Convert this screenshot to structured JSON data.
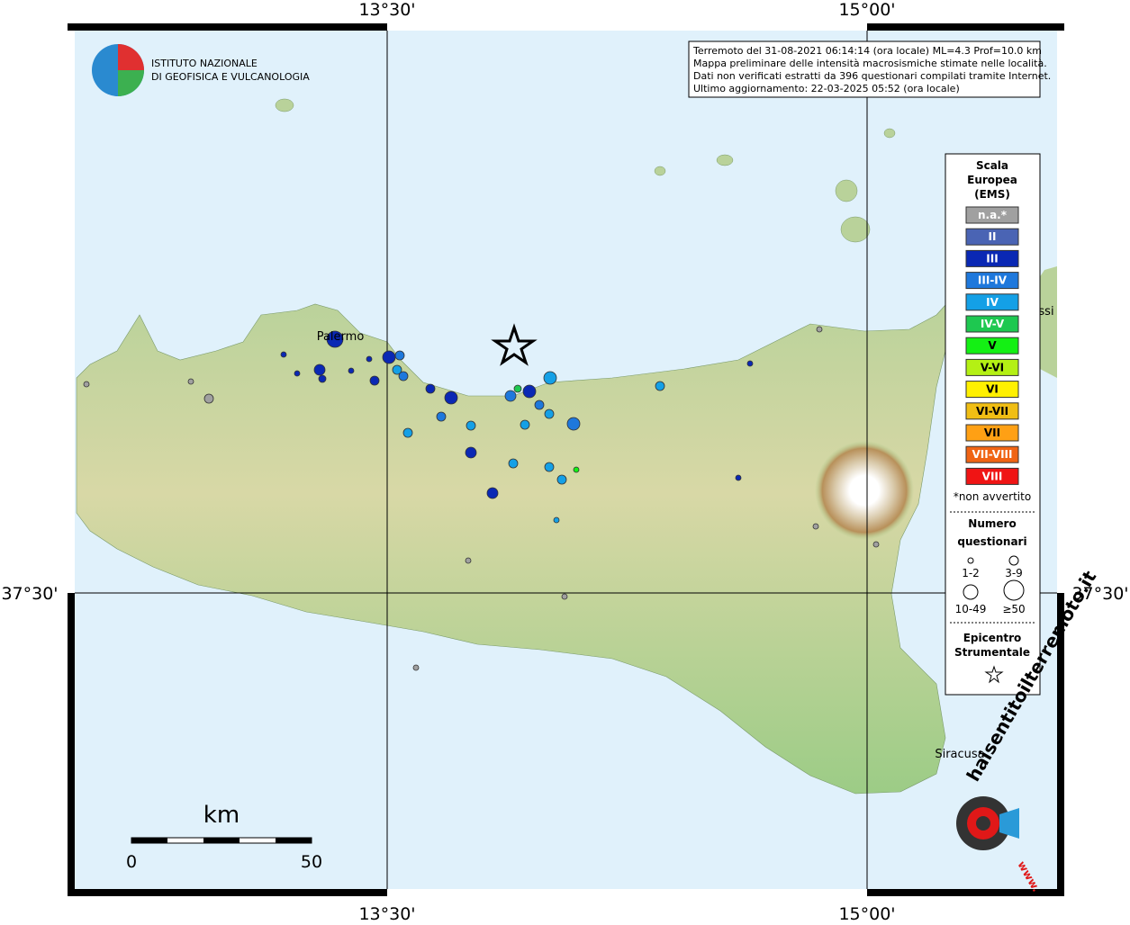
{
  "map": {
    "grid_labels": {
      "lon1": "13°30'",
      "lon2": "15°00'",
      "lat1": "37°30'"
    },
    "logo": {
      "line1": "ISTITUTO NAZIONALE",
      "line2": "DI GEOFISICA E VULCANOLOGIA"
    },
    "info": [
      "Terremoto del 31-08-2021 06:14:14 (ora locale) ML=4.3 Prof=10.0 km",
      "Mappa preliminare delle intensità macrosismiche stimate nelle località.",
      "Dati non verificati estratti da 396 questionari compilati tramite Internet.",
      "Ultimo aggiornamento: 22-03-2025 05:52 (ora locale)"
    ],
    "places": {
      "palermo": "Palermo",
      "siracusa": "Siracusa",
      "messina": "ssi"
    },
    "legend": {
      "title": [
        "Scala",
        "Europea",
        "(EMS)"
      ],
      "classes": [
        {
          "name": "n.a.*",
          "color": "#a0a0a0"
        },
        {
          "name": "II",
          "color": "#4a64b4"
        },
        {
          "name": "III",
          "color": "#0a28b4"
        },
        {
          "name": "III-IV",
          "color": "#1e78dc"
        },
        {
          "name": "IV",
          "color": "#14a0e6"
        },
        {
          "name": "IV-V",
          "color": "#1ec850"
        },
        {
          "name": "V",
          "color": "#14f014"
        },
        {
          "name": "V-VI",
          "color": "#b4f014"
        },
        {
          "name": "VI",
          "color": "#fff000"
        },
        {
          "name": "VI-VII",
          "color": "#f0be14"
        },
        {
          "name": "VII",
          "color": "#ffa014"
        },
        {
          "name": "VII-VIII",
          "color": "#f06414"
        },
        {
          "name": "VIII",
          "color": "#f01414"
        }
      ],
      "note": "*non avvertito",
      "size_title": [
        "Numero",
        "questionari"
      ],
      "sizes": [
        "1-2",
        "3-9",
        "10-49",
        "≥50"
      ],
      "epi_title": [
        "Epicentro",
        "Strumentale"
      ]
    },
    "scale": {
      "unit": "km",
      "min": "0",
      "max": "50"
    },
    "site": {
      "name": "haisentitoilterremoto.it",
      "www": "www."
    }
  }
}
